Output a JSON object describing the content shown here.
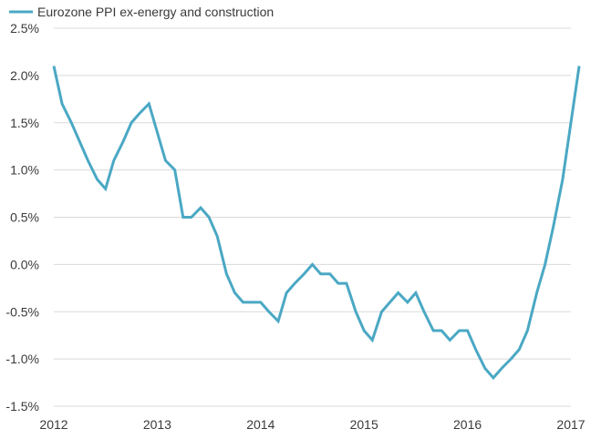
{
  "chart_data": {
    "type": "line",
    "title": "",
    "xlabel": "",
    "ylabel": "",
    "ylim": [
      -1.5,
      2.5
    ],
    "xlim": [
      2012,
      2017
    ],
    "y_ticks": [
      -1.5,
      -1.0,
      -0.5,
      0.0,
      0.5,
      1.0,
      1.5,
      2.0,
      2.5
    ],
    "y_tick_labels": [
      "-1.5%",
      "-1.0%",
      "-0.5%",
      "0.0%",
      "0.5%",
      "1.0%",
      "1.5%",
      "2.0%",
      "2.5%"
    ],
    "x_ticks": [
      2012,
      2013,
      2014,
      2015,
      2016,
      2017
    ],
    "x_tick_labels": [
      "2012",
      "2013",
      "2014",
      "2015",
      "2016",
      "2017"
    ],
    "grid": "horizontal",
    "legend_position": "top-left",
    "series": [
      {
        "name": "Eurozone PPI ex-energy and construction",
        "color": "#4aa8c4",
        "points": [
          [
            2012.0,
            2.1
          ],
          [
            2012.08,
            1.7
          ],
          [
            2012.17,
            1.5
          ],
          [
            2012.25,
            1.3
          ],
          [
            2012.33,
            1.1
          ],
          [
            2012.42,
            0.9
          ],
          [
            2012.5,
            0.8
          ],
          [
            2012.58,
            1.1
          ],
          [
            2012.67,
            1.3
          ],
          [
            2012.75,
            1.5
          ],
          [
            2012.83,
            1.6
          ],
          [
            2012.92,
            1.7
          ],
          [
            2013.0,
            1.4
          ],
          [
            2013.08,
            1.1
          ],
          [
            2013.17,
            1.0
          ],
          [
            2013.25,
            0.5
          ],
          [
            2013.33,
            0.5
          ],
          [
            2013.42,
            0.6
          ],
          [
            2013.5,
            0.5
          ],
          [
            2013.58,
            0.3
          ],
          [
            2013.67,
            -0.1
          ],
          [
            2013.75,
            -0.3
          ],
          [
            2013.83,
            -0.4
          ],
          [
            2013.92,
            -0.4
          ],
          [
            2014.0,
            -0.4
          ],
          [
            2014.08,
            -0.5
          ],
          [
            2014.17,
            -0.6
          ],
          [
            2014.25,
            -0.3
          ],
          [
            2014.33,
            -0.2
          ],
          [
            2014.42,
            -0.1
          ],
          [
            2014.5,
            0.0
          ],
          [
            2014.58,
            -0.1
          ],
          [
            2014.67,
            -0.1
          ],
          [
            2014.75,
            -0.2
          ],
          [
            2014.83,
            -0.2
          ],
          [
            2014.92,
            -0.5
          ],
          [
            2015.0,
            -0.7
          ],
          [
            2015.08,
            -0.8
          ],
          [
            2015.17,
            -0.5
          ],
          [
            2015.25,
            -0.4
          ],
          [
            2015.33,
            -0.3
          ],
          [
            2015.42,
            -0.4
          ],
          [
            2015.5,
            -0.3
          ],
          [
            2015.58,
            -0.5
          ],
          [
            2015.67,
            -0.7
          ],
          [
            2015.75,
            -0.7
          ],
          [
            2015.83,
            -0.8
          ],
          [
            2015.92,
            -0.7
          ],
          [
            2016.0,
            -0.7
          ],
          [
            2016.08,
            -0.9
          ],
          [
            2016.17,
            -1.1
          ],
          [
            2016.25,
            -1.2
          ],
          [
            2016.33,
            -1.1
          ],
          [
            2016.42,
            -1.0
          ],
          [
            2016.5,
            -0.9
          ],
          [
            2016.58,
            -0.7
          ],
          [
            2016.67,
            -0.3
          ],
          [
            2016.75,
            0.0
          ],
          [
            2016.83,
            0.4
          ],
          [
            2016.92,
            0.9
          ],
          [
            2017.0,
            1.5
          ],
          [
            2017.08,
            2.1
          ]
        ]
      }
    ]
  }
}
